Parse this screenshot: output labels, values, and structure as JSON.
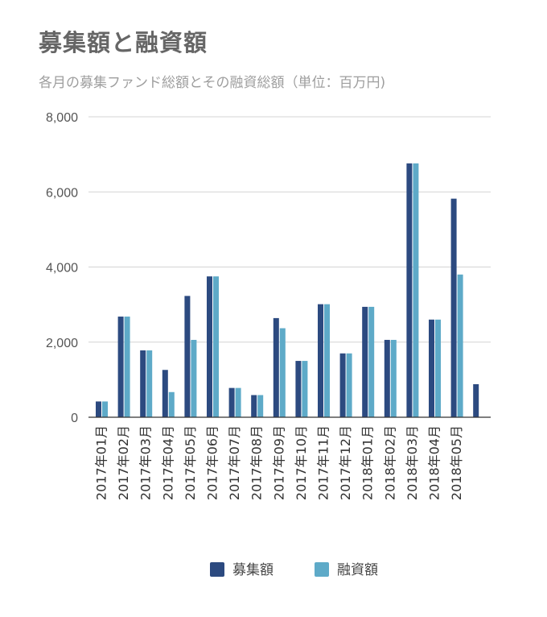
{
  "chart_data": {
    "type": "bar",
    "title": "募集額と融資額",
    "subtitle": "各月の募集ファンド総額とその融資総額（単位：百万円)",
    "categories": [
      "2017年01月",
      "2017年02月",
      "2017年03月",
      "2017年04月",
      "2017年05月",
      "2017年06月",
      "2017年07月",
      "2017年08月",
      "2017年09月",
      "2017年10月",
      "2017年11月",
      "2017年12月",
      "2018年01月",
      "2018年02月",
      "2018年03月",
      "2018年04月",
      "2018年05月",
      ""
    ],
    "series": [
      {
        "name": "募集額",
        "color": "#2c4a80",
        "values": [
          420,
          2680,
          1780,
          1260,
          3230,
          3750,
          780,
          590,
          2640,
          1500,
          3010,
          1700,
          2940,
          2060,
          6760,
          2600,
          5820,
          880
        ]
      },
      {
        "name": "融資額",
        "color": "#5eaac8",
        "values": [
          420,
          2680,
          1780,
          670,
          2060,
          3750,
          780,
          590,
          2370,
          1500,
          3010,
          1700,
          2940,
          2060,
          6760,
          2600,
          3800,
          null
        ]
      }
    ],
    "y_ticks": [
      "0",
      "2,000",
      "4,000",
      "6,000",
      "8,000"
    ],
    "ylim": [
      0,
      8000
    ],
    "grid": true,
    "legend_position": "bottom"
  }
}
